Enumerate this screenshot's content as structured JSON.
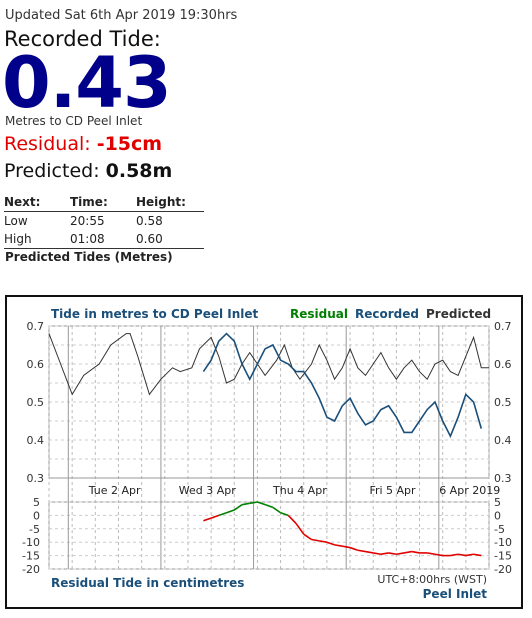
{
  "updated": "Updated Sat 6th Apr 2019 19:30hrs",
  "recorded_label": "Recorded Tide:",
  "recorded_value": "0.43",
  "units_text": "Metres to CD Peel Inlet",
  "residual_label": "Residual:",
  "residual_value": "-15cm",
  "predicted_label": "Predicted:",
  "predicted_value": "0.58m",
  "next_table": {
    "headers": [
      "Next:",
      "Time:",
      "Height:"
    ],
    "rows": [
      [
        "Low",
        "20:55",
        "0.58"
      ],
      [
        "High",
        "01:08",
        "0.60"
      ]
    ]
  },
  "caption": "Predicted Tides (Metres)",
  "colors": {
    "predicted": "#333333",
    "recorded": "#1a4f7a",
    "residual_pos": "#008000",
    "residual_neg": "#e00000",
    "title": "#1a4f7a"
  },
  "chart_data": [
    {
      "type": "line",
      "title": "Tide in metres to CD Peel Inlet",
      "legend": [
        "Residual",
        "Recorded",
        "Predicted"
      ],
      "legend_placement": "top-right",
      "ylim": [
        0.3,
        0.7
      ],
      "yticks": [
        "0.7",
        "0.6",
        "0.5",
        "0.4",
        "0.3"
      ],
      "xlim": [
        0,
        114
      ],
      "x_unit": "hours from 1 Apr 19:00",
      "x_tick_labels": [
        "Tue 2 Apr",
        "Wed 3 Apr",
        "Thu 4 Apr",
        "Fri 5 Apr",
        "6 Apr 2019"
      ],
      "grid": true,
      "series": [
        {
          "name": "Predicted",
          "x": [
            0,
            3,
            6,
            9,
            13,
            16,
            20,
            21,
            23,
            26,
            29,
            32,
            34,
            37,
            39,
            42,
            44,
            46,
            48,
            50,
            52,
            54,
            56,
            59,
            61,
            63,
            65,
            68,
            70,
            72,
            74,
            76,
            78,
            80,
            82,
            84,
            86,
            88,
            90,
            92,
            94,
            96,
            98,
            100,
            102,
            104,
            106,
            108,
            110,
            112,
            114
          ],
          "y": [
            0.68,
            0.6,
            0.52,
            0.57,
            0.6,
            0.65,
            0.68,
            0.68,
            0.62,
            0.52,
            0.56,
            0.59,
            0.58,
            0.59,
            0.64,
            0.67,
            0.62,
            0.55,
            0.56,
            0.6,
            0.63,
            0.6,
            0.57,
            0.61,
            0.65,
            0.59,
            0.56,
            0.6,
            0.65,
            0.61,
            0.56,
            0.59,
            0.64,
            0.59,
            0.57,
            0.6,
            0.63,
            0.59,
            0.56,
            0.59,
            0.61,
            0.58,
            0.56,
            0.6,
            0.61,
            0.58,
            0.57,
            0.62,
            0.67,
            0.59,
            0.59
          ]
        },
        {
          "name": "Recorded",
          "x": [
            40,
            42,
            44,
            46,
            48,
            50,
            52,
            54,
            56,
            58,
            60,
            62,
            64,
            66,
            68,
            70,
            72,
            74,
            76,
            78,
            80,
            82,
            84,
            86,
            88,
            90,
            92,
            94,
            96,
            98,
            100,
            102,
            104,
            106,
            108,
            110,
            112
          ],
          "y": [
            0.58,
            0.61,
            0.66,
            0.68,
            0.66,
            0.6,
            0.56,
            0.6,
            0.64,
            0.65,
            0.61,
            0.6,
            0.58,
            0.58,
            0.55,
            0.51,
            0.46,
            0.45,
            0.49,
            0.51,
            0.47,
            0.44,
            0.45,
            0.48,
            0.49,
            0.46,
            0.42,
            0.42,
            0.45,
            0.48,
            0.5,
            0.45,
            0.41,
            0.46,
            0.52,
            0.5,
            0.43
          ]
        }
      ]
    },
    {
      "type": "line",
      "title": "Residual Tide in centimetres",
      "ylim": [
        -20,
        5
      ],
      "yticks": [
        "5",
        "0",
        "-5",
        "-10",
        "-15",
        "-20"
      ],
      "xlim": [
        0,
        114
      ],
      "timezone_label": "UTC+8:00hrs (WST)",
      "station_label": "Peel Inlet",
      "grid": true,
      "series": [
        {
          "name": "Residual",
          "x": [
            40,
            42,
            44,
            46,
            48,
            50,
            52,
            54,
            56,
            58,
            60,
            62,
            64,
            66,
            68,
            70,
            72,
            74,
            76,
            78,
            80,
            82,
            84,
            86,
            88,
            90,
            92,
            94,
            96,
            98,
            100,
            102,
            104,
            106,
            108,
            110,
            112
          ],
          "y": [
            -2,
            -1,
            0,
            1,
            2,
            4,
            4.5,
            5,
            4,
            3,
            1,
            0,
            -3,
            -7,
            -9,
            -9.5,
            -10,
            -11,
            -11.5,
            -12,
            -13,
            -13.5,
            -14,
            -14.5,
            -14,
            -14.5,
            -14,
            -13.5,
            -14,
            -14,
            -14.5,
            -15,
            -15,
            -14.5,
            -15,
            -14.5,
            -15
          ]
        }
      ]
    }
  ]
}
